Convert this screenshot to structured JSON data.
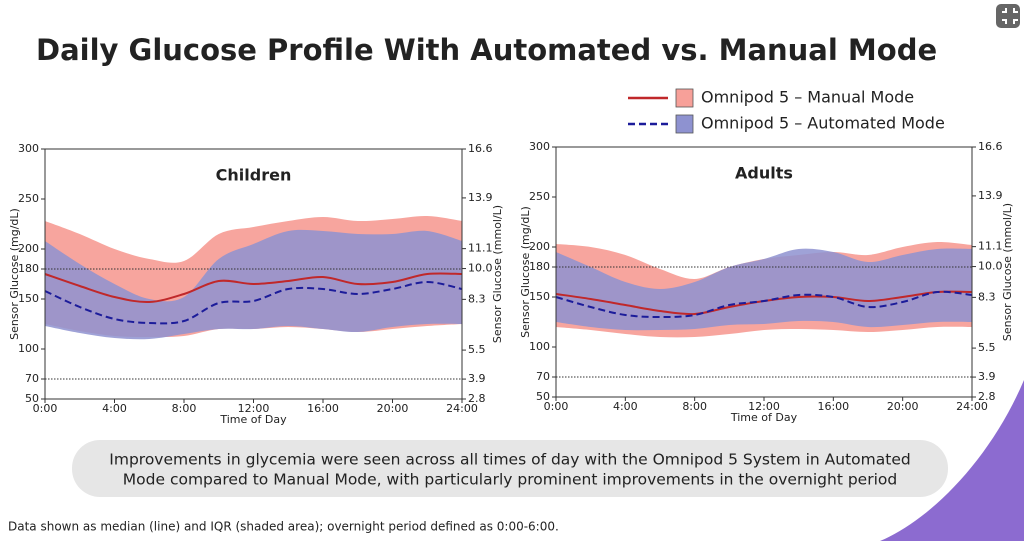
{
  "title": "Daily Glucose Profile With Automated vs. Manual Mode",
  "callout": "Improvements in glycemia were seen across all times of day with the Omnipod 5 System in Automated Mode compared to Manual Mode, with particularly prominent improvements in the overnight period",
  "footnote": "Data shown as median (line) and IQR (shaded area); overnight period defined as 0:00-6:00.",
  "chart_data": [
    {
      "type": "band-line",
      "title": "Children",
      "x_label": "Time of Day",
      "y_label": "Sensor Glucose (mg/dL)",
      "y2_label": "Sensor Glucose (mmol/L)",
      "x": [
        0,
        2,
        4,
        6,
        8,
        10,
        12,
        14,
        16,
        18,
        20,
        22,
        24
      ],
      "xlim": [
        0,
        24
      ],
      "xticks": [
        {
          "value": 0,
          "label": "0:00"
        },
        {
          "value": 4,
          "label": "4:00"
        },
        {
          "value": 8,
          "label": "8:00"
        },
        {
          "value": 12,
          "label": "12:00"
        },
        {
          "value": 16,
          "label": "16:00"
        },
        {
          "value": 20,
          "label": "20:00"
        },
        {
          "value": 24,
          "label": "24:00"
        }
      ],
      "ylim": [
        50,
        300
      ],
      "yticks": [
        50,
        70,
        100,
        150,
        180,
        200,
        250,
        300
      ],
      "y2lim": [
        2.8,
        16.6
      ],
      "y2ticks": [
        2.8,
        3.9,
        5.5,
        8.3,
        {
          "value": 10,
          "label": "10.0"
        },
        11.1,
        13.9,
        16.6
      ],
      "hlines": [
        70,
        180
      ],
      "series": [
        {
          "name": "Omnipod 5 – Manual Mode",
          "color": "#f7a099",
          "line_color": "#c0282a",
          "dashed": false,
          "values": [
            175,
            163,
            152,
            147,
            155,
            168,
            165,
            168,
            172,
            165,
            167,
            175,
            175
          ],
          "q1": [
            125,
            118,
            113,
            112,
            113,
            120,
            120,
            122,
            120,
            117,
            120,
            123,
            125
          ],
          "q3": [
            228,
            215,
            200,
            190,
            188,
            215,
            222,
            228,
            232,
            228,
            230,
            233,
            228
          ]
        },
        {
          "name": "Omnipod 5 – Automated Mode",
          "color": "#8e92d0",
          "line_color": "#1c1c9a",
          "dashed": true,
          "values": [
            158,
            142,
            130,
            126,
            128,
            146,
            148,
            160,
            160,
            155,
            160,
            167,
            160
          ],
          "q1": [
            123,
            116,
            111,
            110,
            115,
            120,
            120,
            123,
            120,
            117,
            122,
            125,
            125
          ],
          "q3": [
            208,
            185,
            165,
            150,
            152,
            190,
            205,
            218,
            218,
            215,
            215,
            218,
            208
          ]
        }
      ]
    },
    {
      "type": "band-line",
      "title": "Adults",
      "x_label": "Time of Day",
      "y_label": "Sensor Glucose (mg/dL)",
      "y2_label": "Sensor Glucose (mmol/L)",
      "x": [
        0,
        2,
        4,
        6,
        8,
        10,
        12,
        14,
        16,
        18,
        20,
        22,
        24
      ],
      "xlim": [
        0,
        24
      ],
      "xticks": [
        {
          "value": 0,
          "label": "0:00"
        },
        {
          "value": 4,
          "label": "4:00"
        },
        {
          "value": 8,
          "label": "8:00"
        },
        {
          "value": 12,
          "label": "12:00"
        },
        {
          "value": 16,
          "label": "16:00"
        },
        {
          "value": 20,
          "label": "20:00"
        },
        {
          "value": 24,
          "label": "24:00"
        }
      ],
      "ylim": [
        50,
        300
      ],
      "yticks": [
        50,
        70,
        100,
        150,
        180,
        200,
        250,
        300
      ],
      "y2lim": [
        2.8,
        16.6
      ],
      "y2ticks": [
        2.8,
        3.9,
        5.5,
        8.3,
        {
          "value": 10,
          "label": "10.0"
        },
        11.1,
        13.9,
        16.6
      ],
      "hlines": [
        70,
        180
      ],
      "series": [
        {
          "color": "#f7a099",
          "line_color": "#c0282a",
          "dashed": false,
          "values": [
            153,
            148,
            142,
            136,
            133,
            140,
            146,
            150,
            150,
            146,
            150,
            155,
            155
          ],
          "q1": [
            120,
            117,
            113,
            110,
            110,
            113,
            117,
            118,
            117,
            115,
            117,
            120,
            120
          ],
          "q3": [
            203,
            200,
            192,
            178,
            168,
            180,
            188,
            192,
            195,
            192,
            200,
            205,
            202
          ]
        },
        {
          "color": "#8e92d0",
          "line_color": "#1c1c9a",
          "dashed": true,
          "values": [
            150,
            140,
            132,
            130,
            132,
            142,
            146,
            152,
            150,
            140,
            145,
            155,
            152
          ],
          "q1": [
            125,
            120,
            117,
            117,
            118,
            122,
            123,
            126,
            125,
            120,
            122,
            125,
            125
          ],
          "q3": [
            195,
            180,
            165,
            158,
            165,
            180,
            188,
            198,
            195,
            185,
            192,
            198,
            198
          ]
        }
      ]
    }
  ]
}
